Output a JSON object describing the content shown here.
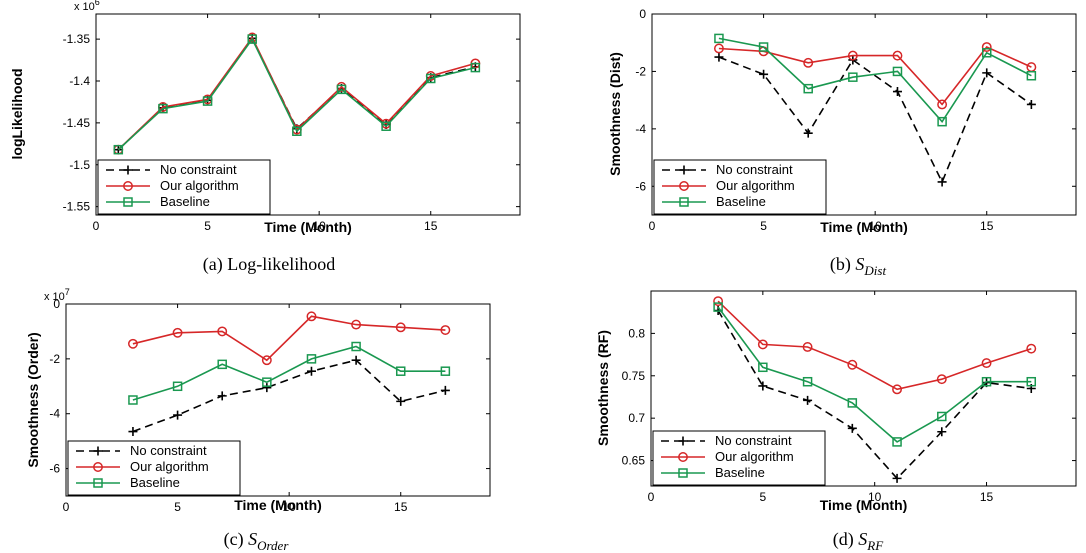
{
  "series_styles": {
    "No constraint": {
      "color": "#000000",
      "marker": "plus",
      "dash": "8,5"
    },
    "Our algorithm": {
      "color": "#d62728",
      "marker": "circle",
      "dash": ""
    },
    "Baseline": {
      "color": "#1a9850",
      "marker": "square",
      "dash": ""
    }
  },
  "chart_data": [
    {
      "type": "line",
      "caption": "(a) Log-likelihood",
      "xlabel": "Time (Month)",
      "ylabel": "logLikelihood",
      "y_exponent_label": "x 10",
      "y_exponent_sup": "6",
      "xlim": [
        0,
        19
      ],
      "ylim": [
        -1.56,
        -1.32
      ],
      "xticks": [
        0,
        5,
        10,
        15
      ],
      "xtick_labels": [
        "0",
        "5",
        "10",
        "15"
      ],
      "yticks": [
        -1.55,
        -1.5,
        -1.45,
        -1.4,
        -1.35
      ],
      "ytick_labels": [
        "-1.55",
        "-1.5",
        "-1.45",
        "-1.4",
        "-1.35"
      ],
      "legend": "bottom-left",
      "series": [
        {
          "name": "No constraint",
          "x": [
            1,
            3,
            5,
            7,
            9,
            11,
            13,
            15,
            17
          ],
          "y": [
            -1.482,
            -1.432,
            -1.423,
            -1.349,
            -1.457,
            -1.409,
            -1.452,
            -1.396,
            -1.383
          ]
        },
        {
          "name": "Our algorithm",
          "x": [
            1,
            3,
            5,
            7,
            9,
            11,
            13,
            15,
            17
          ],
          "y": [
            -1.482,
            -1.431,
            -1.422,
            -1.348,
            -1.458,
            -1.407,
            -1.451,
            -1.394,
            -1.379
          ]
        },
        {
          "name": "Baseline",
          "x": [
            1,
            3,
            5,
            7,
            9,
            11,
            13,
            15,
            17
          ],
          "y": [
            -1.482,
            -1.433,
            -1.424,
            -1.35,
            -1.46,
            -1.41,
            -1.454,
            -1.397,
            -1.384
          ]
        }
      ]
    },
    {
      "type": "line",
      "caption_prefix": "(b) ",
      "caption_main": "S",
      "caption_sub": "Dist",
      "xlabel": "Time (Month)",
      "ylabel": "Smoothness (Dist)",
      "xlim": [
        0,
        19
      ],
      "ylim": [
        -7,
        0
      ],
      "xticks": [
        0,
        5,
        10,
        15
      ],
      "xtick_labels": [
        "0",
        "5",
        "10",
        "15"
      ],
      "yticks": [
        -6,
        -4,
        -2,
        0
      ],
      "ytick_labels": [
        "-6",
        "-4",
        "-2",
        "0"
      ],
      "legend": "bottom-left",
      "series": [
        {
          "name": "No constraint",
          "x": [
            3,
            5,
            7,
            9,
            11,
            13,
            15,
            17
          ],
          "y": [
            -1.5,
            -2.1,
            -4.15,
            -1.6,
            -2.7,
            -5.85,
            -2.05,
            -3.15
          ]
        },
        {
          "name": "Our algorithm",
          "x": [
            3,
            5,
            7,
            9,
            11,
            13,
            15,
            17
          ],
          "y": [
            -1.2,
            -1.3,
            -1.7,
            -1.45,
            -1.45,
            -3.15,
            -1.15,
            -1.85
          ]
        },
        {
          "name": "Baseline",
          "x": [
            3,
            5,
            7,
            9,
            11,
            13,
            15,
            17
          ],
          "y": [
            -0.85,
            -1.15,
            -2.6,
            -2.2,
            -2.0,
            -3.75,
            -1.35,
            -2.15
          ]
        }
      ]
    },
    {
      "type": "line",
      "caption_prefix": "(c) ",
      "caption_main": "S",
      "caption_sub": "Order",
      "xlabel": "Time (Month)",
      "ylabel": "Smoothness (Order)",
      "y_exponent_label": "x 10",
      "y_exponent_sup": "7",
      "xlim": [
        0,
        19
      ],
      "ylim": [
        -7,
        0
      ],
      "xticks": [
        0,
        5,
        10,
        15
      ],
      "xtick_labels": [
        "0",
        "5",
        "10",
        "15"
      ],
      "yticks": [
        -6,
        -4,
        -2,
        0
      ],
      "ytick_labels": [
        "-6",
        "-4",
        "-2",
        "0"
      ],
      "legend": "bottom-left",
      "series": [
        {
          "name": "No constraint",
          "x": [
            3,
            5,
            7,
            9,
            11,
            13,
            15,
            17
          ],
          "y": [
            -4.65,
            -4.05,
            -3.35,
            -3.05,
            -2.45,
            -2.05,
            -3.55,
            -3.15
          ]
        },
        {
          "name": "Our algorithm",
          "x": [
            3,
            5,
            7,
            9,
            11,
            13,
            15,
            17
          ],
          "y": [
            -1.45,
            -1.05,
            -1.0,
            -2.05,
            -0.45,
            -0.75,
            -0.85,
            -0.95
          ]
        },
        {
          "name": "Baseline",
          "x": [
            3,
            5,
            7,
            9,
            11,
            13,
            15,
            17
          ],
          "y": [
            -3.5,
            -3.0,
            -2.2,
            -2.85,
            -2.0,
            -1.55,
            -2.45,
            -2.45
          ]
        }
      ]
    },
    {
      "type": "line",
      "caption_prefix": "(d) ",
      "caption_main": "S",
      "caption_sub": "RF",
      "xlabel": "Time (Month)",
      "ylabel": "Smoothness (RF)",
      "xlim": [
        0,
        19
      ],
      "ylim": [
        0.62,
        0.85
      ],
      "xticks": [
        0,
        5,
        10,
        15
      ],
      "xtick_labels": [
        "0",
        "5",
        "10",
        "15"
      ],
      "yticks": [
        0.65,
        0.7,
        0.75,
        0.8
      ],
      "ytick_labels": [
        "0.65",
        "0.7",
        "0.75",
        "0.8"
      ],
      "legend": "bottom-left",
      "series": [
        {
          "name": "No constraint",
          "x": [
            3,
            5,
            7,
            9,
            11,
            13,
            15,
            17
          ],
          "y": [
            0.827,
            0.738,
            0.721,
            0.688,
            0.629,
            0.684,
            0.742,
            0.735
          ]
        },
        {
          "name": "Our algorithm",
          "x": [
            3,
            5,
            7,
            9,
            11,
            13,
            15,
            17
          ],
          "y": [
            0.838,
            0.787,
            0.784,
            0.763,
            0.734,
            0.746,
            0.765,
            0.782
          ]
        },
        {
          "name": "Baseline",
          "x": [
            3,
            5,
            7,
            9,
            11,
            13,
            15,
            17
          ],
          "y": [
            0.831,
            0.76,
            0.743,
            0.718,
            0.672,
            0.702,
            0.743,
            0.743
          ]
        }
      ]
    }
  ]
}
